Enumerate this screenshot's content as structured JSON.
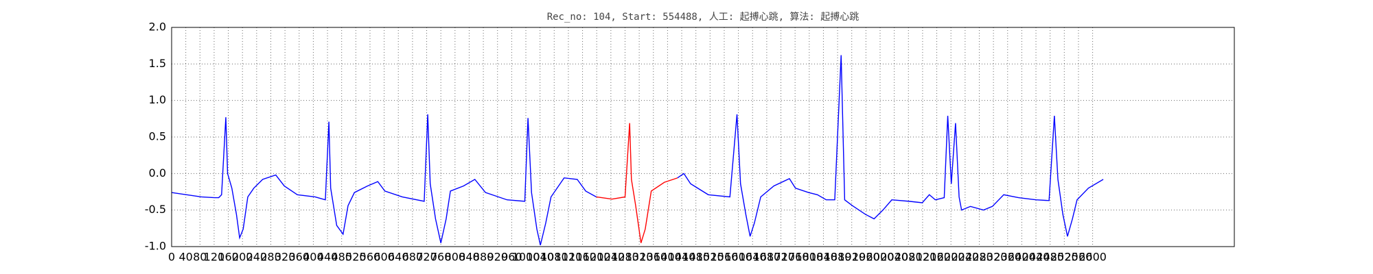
{
  "chart_data": {
    "type": "line",
    "title": "Rec_no: 104, Start: 554488, 人工: 起搏心跳, 算法: 起搏心跳",
    "x": [
      0,
      84,
      121,
      133,
      141,
      153,
      158,
      170,
      183,
      192,
      202,
      215,
      232,
      257,
      294,
      318,
      355,
      405,
      434,
      444,
      449,
      466,
      484,
      498,
      516,
      553,
      582,
      602,
      651,
      713,
      723,
      730,
      745,
      760,
      775,
      787,
      824,
      856,
      886,
      947,
      997,
      1006,
      1016,
      1031,
      1041,
      1056,
      1071,
      1108,
      1145,
      1169,
      1199,
      1243,
      1280,
      1293,
      1298,
      1310,
      1325,
      1337,
      1354,
      1391,
      1428,
      1446,
      1465,
      1515,
      1576,
      1596,
      1606,
      1621,
      1633,
      1645,
      1663,
      1700,
      1744,
      1761,
      1798,
      1823,
      1848,
      1872,
      1890,
      1900,
      1922,
      1959,
      1983,
      2008,
      2033,
      2082,
      2119,
      2139,
      2156,
      2181,
      2191,
      2201,
      2213,
      2223,
      2230,
      2255,
      2292,
      2317,
      2349,
      2391,
      2440,
      2477,
      2492,
      2502,
      2516,
      2529,
      2543,
      2556,
      2588,
      2630
    ],
    "series": [
      {
        "color": "#0000ff",
        "values": [
          -0.26,
          -0.32,
          -0.33,
          -0.33,
          -0.29,
          0.77,
          0,
          -0.2,
          -0.56,
          -0.88,
          -0.76,
          -0.32,
          -0.2,
          -0.08,
          -0.02,
          -0.17,
          -0.29,
          -0.32,
          -0.36,
          0.71,
          -0.2,
          -0.71,
          -0.83,
          -0.44,
          -0.26,
          -0.17,
          -0.11,
          -0.24,
          -0.32,
          -0.38,
          0.81,
          -0.14,
          -0.62,
          -0.95,
          -0.62,
          -0.24,
          -0.17,
          -0.08,
          -0.26,
          -0.36,
          -0.38,
          0.76,
          -0.26,
          -0.76,
          -0.98,
          -0.68,
          -0.32,
          -0.06,
          -0.08,
          -0.24,
          -0.32,
          null,
          null,
          null,
          null,
          null,
          null,
          null,
          null,
          null,
          -0.06,
          0,
          -0.14,
          -0.29,
          -0.32,
          0.81,
          -0.14,
          -0.56,
          -0.86,
          -0.68,
          -0.32,
          -0.17,
          -0.07,
          -0.2,
          -0.26,
          -0.29,
          -0.36,
          -0.36,
          1.62,
          -0.36,
          -0.44,
          -0.56,
          -0.62,
          -0.5,
          -0.36,
          -0.38,
          -0.4,
          -0.29,
          -0.36,
          -0.33,
          0.79,
          -0.14,
          0.69,
          -0.32,
          -0.5,
          -0.45,
          -0.5,
          -0.45,
          -0.29,
          -0.33,
          -0.36,
          -0.37,
          0.79,
          -0.08,
          -0.56,
          -0.86,
          -0.62,
          -0.36,
          -0.2,
          -0.08
        ]
      },
      {
        "color": "#ff0000",
        "values": [
          null,
          null,
          null,
          null,
          null,
          null,
          null,
          null,
          null,
          null,
          null,
          null,
          null,
          null,
          null,
          null,
          null,
          null,
          null,
          null,
          null,
          null,
          null,
          null,
          null,
          null,
          null,
          null,
          null,
          null,
          null,
          null,
          null,
          null,
          null,
          null,
          null,
          null,
          null,
          null,
          null,
          null,
          null,
          null,
          null,
          null,
          null,
          null,
          null,
          null,
          -0.32,
          -0.35,
          -0.32,
          0.69,
          -0.08,
          -0.44,
          -0.95,
          -0.76,
          -0.24,
          -0.12,
          -0.06,
          null,
          null,
          null,
          null,
          null,
          null,
          null,
          null,
          null,
          null,
          null,
          null,
          null,
          null,
          null,
          null,
          null,
          null,
          null,
          null,
          null,
          null,
          null,
          null,
          null,
          null,
          null,
          null,
          null,
          null,
          null,
          null,
          null,
          null,
          null,
          null,
          null,
          null,
          null,
          null,
          null,
          null,
          null,
          null,
          null,
          null,
          null,
          null,
          null
        ]
      }
    ],
    "xlim": [
      0,
      3000
    ],
    "xticks": [
      0,
      40,
      80,
      120,
      160,
      200,
      240,
      280,
      320,
      360,
      400,
      440,
      480,
      520,
      560,
      600,
      640,
      680,
      720,
      760,
      800,
      840,
      880,
      920,
      960,
      1000,
      1040,
      1080,
      1120,
      1160,
      1200,
      1240,
      1280,
      1320,
      1360,
      1400,
      1440,
      1480,
      1520,
      1560,
      1600,
      1640,
      1680,
      1720,
      1760,
      1800,
      1840,
      1880,
      1920,
      1960,
      2000,
      2040,
      2080,
      2120,
      2160,
      2200,
      2240,
      2280,
      2320,
      2360,
      2400,
      2440,
      2480,
      2520,
      2560,
      2600
    ],
    "ylim": [
      -1,
      2
    ],
    "yticks": [
      {
        "value": -1,
        "label": "-1.0"
      },
      -0.5,
      {
        "value": 0,
        "label": "0.0"
      },
      0.5,
      {
        "value": 1,
        "label": "1.0"
      },
      1.5,
      {
        "value": 2,
        "label": "2.0"
      }
    ],
    "grid": true
  }
}
